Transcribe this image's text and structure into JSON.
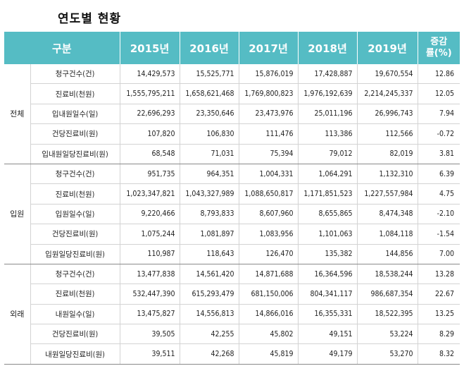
{
  "title": "연도별 현황",
  "header": {
    "category": "구분",
    "years": [
      "2015년",
      "2016년",
      "2017년",
      "2018년",
      "2019년"
    ],
    "rate_line1": "증감",
    "rate_line2": "률(%)"
  },
  "groups": [
    {
      "name": "전체",
      "rows": [
        {
          "item": "청구건수(건)",
          "values": [
            "14,429,573",
            "15,525,771",
            "15,876,019",
            "17,428,887",
            "19,670,554"
          ],
          "rate": "12.86"
        },
        {
          "item": "진료비(천원)",
          "values": [
            "1,555,795,211",
            "1,658,621,468",
            "1,769,800,823",
            "1,976,192,639",
            "2,214,245,337"
          ],
          "rate": "12.05"
        },
        {
          "item": "입내원일수(일)",
          "values": [
            "22,696,293",
            "23,350,646",
            "23,473,976",
            "25,011,196",
            "26,996,743"
          ],
          "rate": "7.94"
        },
        {
          "item": "건당진료비(원)",
          "values": [
            "107,820",
            "106,830",
            "111,476",
            "113,386",
            "112,566"
          ],
          "rate": "-0.72"
        },
        {
          "item": "입내원일당진료비(원)",
          "values": [
            "68,548",
            "71,031",
            "75,394",
            "79,012",
            "82,019"
          ],
          "rate": "3.81"
        }
      ]
    },
    {
      "name": "입원",
      "rows": [
        {
          "item": "청구건수(건)",
          "values": [
            "951,735",
            "964,351",
            "1,004,331",
            "1,064,291",
            "1,132,310"
          ],
          "rate": "6.39"
        },
        {
          "item": "진료비(천원)",
          "values": [
            "1,023,347,821",
            "1,043,327,989",
            "1,088,650,817",
            "1,171,851,523",
            "1,227,557,984"
          ],
          "rate": "4.75"
        },
        {
          "item": "입원일수(일)",
          "values": [
            "9,220,466",
            "8,793,833",
            "8,607,960",
            "8,655,865",
            "8,474,348"
          ],
          "rate": "-2.10"
        },
        {
          "item": "건당진료비(원)",
          "values": [
            "1,075,244",
            "1,081,897",
            "1,083,956",
            "1,101,063",
            "1,084,118"
          ],
          "rate": "-1.54"
        },
        {
          "item": "입원일당진료비(원)",
          "values": [
            "110,987",
            "118,643",
            "126,470",
            "135,382",
            "144,856"
          ],
          "rate": "7.00"
        }
      ]
    },
    {
      "name": "외래",
      "rows": [
        {
          "item": "청구건수(건)",
          "values": [
            "13,477,838",
            "14,561,420",
            "14,871,688",
            "16,364,596",
            "18,538,244"
          ],
          "rate": "13.28"
        },
        {
          "item": "진료비(천원)",
          "values": [
            "532,447,390",
            "615,293,479",
            "681,150,006",
            "804,341,117",
            "986,687,354"
          ],
          "rate": "22.67"
        },
        {
          "item": "내원일수(일)",
          "values": [
            "13,475,827",
            "14,556,813",
            "14,866,016",
            "16,355,331",
            "18,522,395"
          ],
          "rate": "13.25"
        },
        {
          "item": "건당진료비(원)",
          "values": [
            "39,505",
            "42,255",
            "45,802",
            "49,151",
            "53,224"
          ],
          "rate": "8.29"
        },
        {
          "item": "내원일당진료비(원)",
          "values": [
            "39,511",
            "42,268",
            "45,819",
            "49,179",
            "53,270"
          ],
          "rate": "8.32"
        }
      ]
    }
  ]
}
